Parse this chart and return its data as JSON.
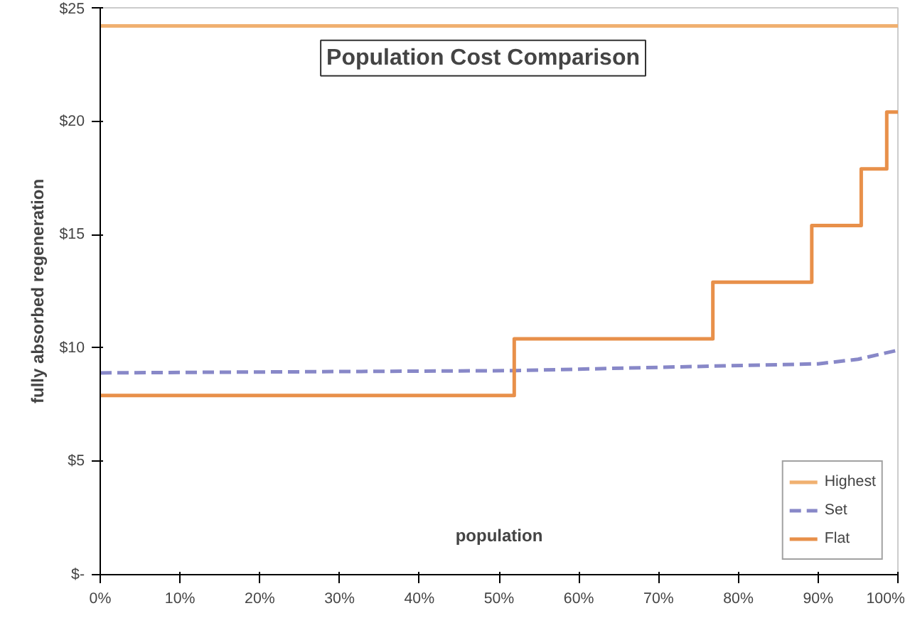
{
  "chart_data": {
    "type": "line",
    "title": "Population Cost Comparison",
    "xlabel": "population",
    "ylabel": "fully absorbed regeneration",
    "xlim": [
      0,
      100
    ],
    "xticks": [
      {
        "value": 0,
        "label": "0%"
      },
      {
        "value": 10,
        "label": "10%"
      },
      {
        "value": 20,
        "label": "20%"
      },
      {
        "value": 30,
        "label": "30%"
      },
      {
        "value": 40,
        "label": "40%"
      },
      {
        "value": 50,
        "label": "50%"
      },
      {
        "value": 60,
        "label": "60%"
      },
      {
        "value": 70,
        "label": "70%"
      },
      {
        "value": 80,
        "label": "80%"
      },
      {
        "value": 90,
        "label": "90%"
      },
      {
        "value": 100,
        "label": "100%"
      }
    ],
    "ylim": [
      0,
      25
    ],
    "yticks": [
      {
        "value": 0,
        "label": "$-"
      },
      {
        "value": 5,
        "label": "$5"
      },
      {
        "value": 10,
        "label": "$10"
      },
      {
        "value": 15,
        "label": "$15"
      },
      {
        "value": 20,
        "label": "$20"
      },
      {
        "value": 25,
        "label": "$25"
      }
    ],
    "grid": false,
    "legend": "bottom right",
    "series": [
      {
        "name": "Highest",
        "color": "#f0b070",
        "x": [
          0,
          100
        ],
        "values": [
          24.2,
          24.2
        ],
        "line_style": "solid"
      },
      {
        "name": "Set",
        "color": "#8888c8",
        "x": [
          0,
          52,
          77,
          90,
          95,
          100
        ],
        "values": [
          8.9,
          9.0,
          9.2,
          9.3,
          9.5,
          9.9
        ],
        "line_style": "dashed"
      },
      {
        "name": "Flat",
        "color": "#e8904a",
        "type": "step",
        "x": [
          0,
          51.9,
          76.8,
          89.2,
          95.4,
          98.6,
          100
        ],
        "values": [
          7.9,
          10.4,
          12.9,
          15.4,
          17.9,
          20.4,
          20.4
        ],
        "line_style": "solid"
      }
    ]
  }
}
